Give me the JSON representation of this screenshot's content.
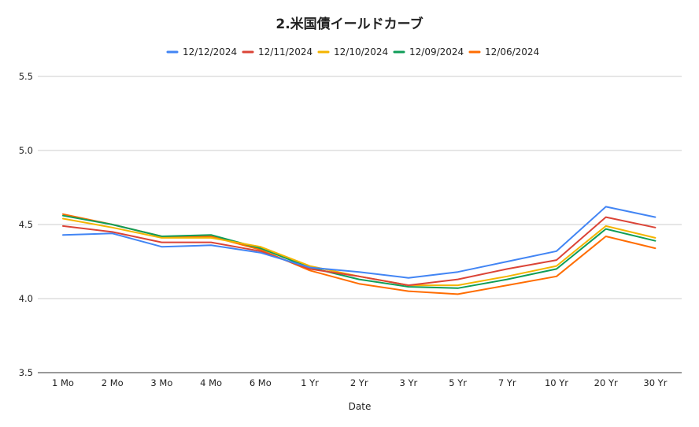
{
  "chart_data": {
    "type": "line",
    "title": "2.米国債イールドカーブ",
    "xlabel": "Date",
    "ylabel": "",
    "categories": [
      "1 Mo",
      "2 Mo",
      "3 Mo",
      "4 Mo",
      "6 Mo",
      "1 Yr",
      "2 Yr",
      "3 Yr",
      "5 Yr",
      "7 Yr",
      "10 Yr",
      "20 Yr",
      "30 Yr"
    ],
    "ylim": [
      3.5,
      5.5
    ],
    "yticks": [
      "3.5",
      "4.0",
      "4.5",
      "5.0",
      "5.5"
    ],
    "grid": true,
    "legend_position": "top",
    "series": [
      {
        "name": "12/12/2024",
        "color": "#4285F4",
        "values": [
          4.43,
          4.44,
          4.35,
          4.36,
          4.31,
          4.21,
          4.18,
          4.14,
          4.18,
          4.25,
          4.32,
          4.62,
          4.55
        ]
      },
      {
        "name": "12/11/2024",
        "color": "#DB4437",
        "values": [
          4.49,
          4.45,
          4.38,
          4.38,
          4.32,
          4.2,
          4.15,
          4.09,
          4.13,
          4.2,
          4.26,
          4.55,
          4.48
        ]
      },
      {
        "name": "12/10/2024",
        "color": "#F4B400",
        "values": [
          4.54,
          4.48,
          4.41,
          4.41,
          4.35,
          4.22,
          4.15,
          4.09,
          4.09,
          4.15,
          4.22,
          4.49,
          4.41
        ]
      },
      {
        "name": "12/09/2024",
        "color": "#0F9D58",
        "values": [
          4.56,
          4.5,
          4.42,
          4.43,
          4.34,
          4.21,
          4.13,
          4.08,
          4.07,
          4.13,
          4.2,
          4.47,
          4.39
        ]
      },
      {
        "name": "12/06/2024",
        "color": "#FF6D01",
        "values": [
          4.57,
          4.5,
          4.42,
          4.42,
          4.33,
          4.19,
          4.1,
          4.05,
          4.03,
          4.09,
          4.15,
          4.42,
          4.34
        ]
      }
    ]
  }
}
